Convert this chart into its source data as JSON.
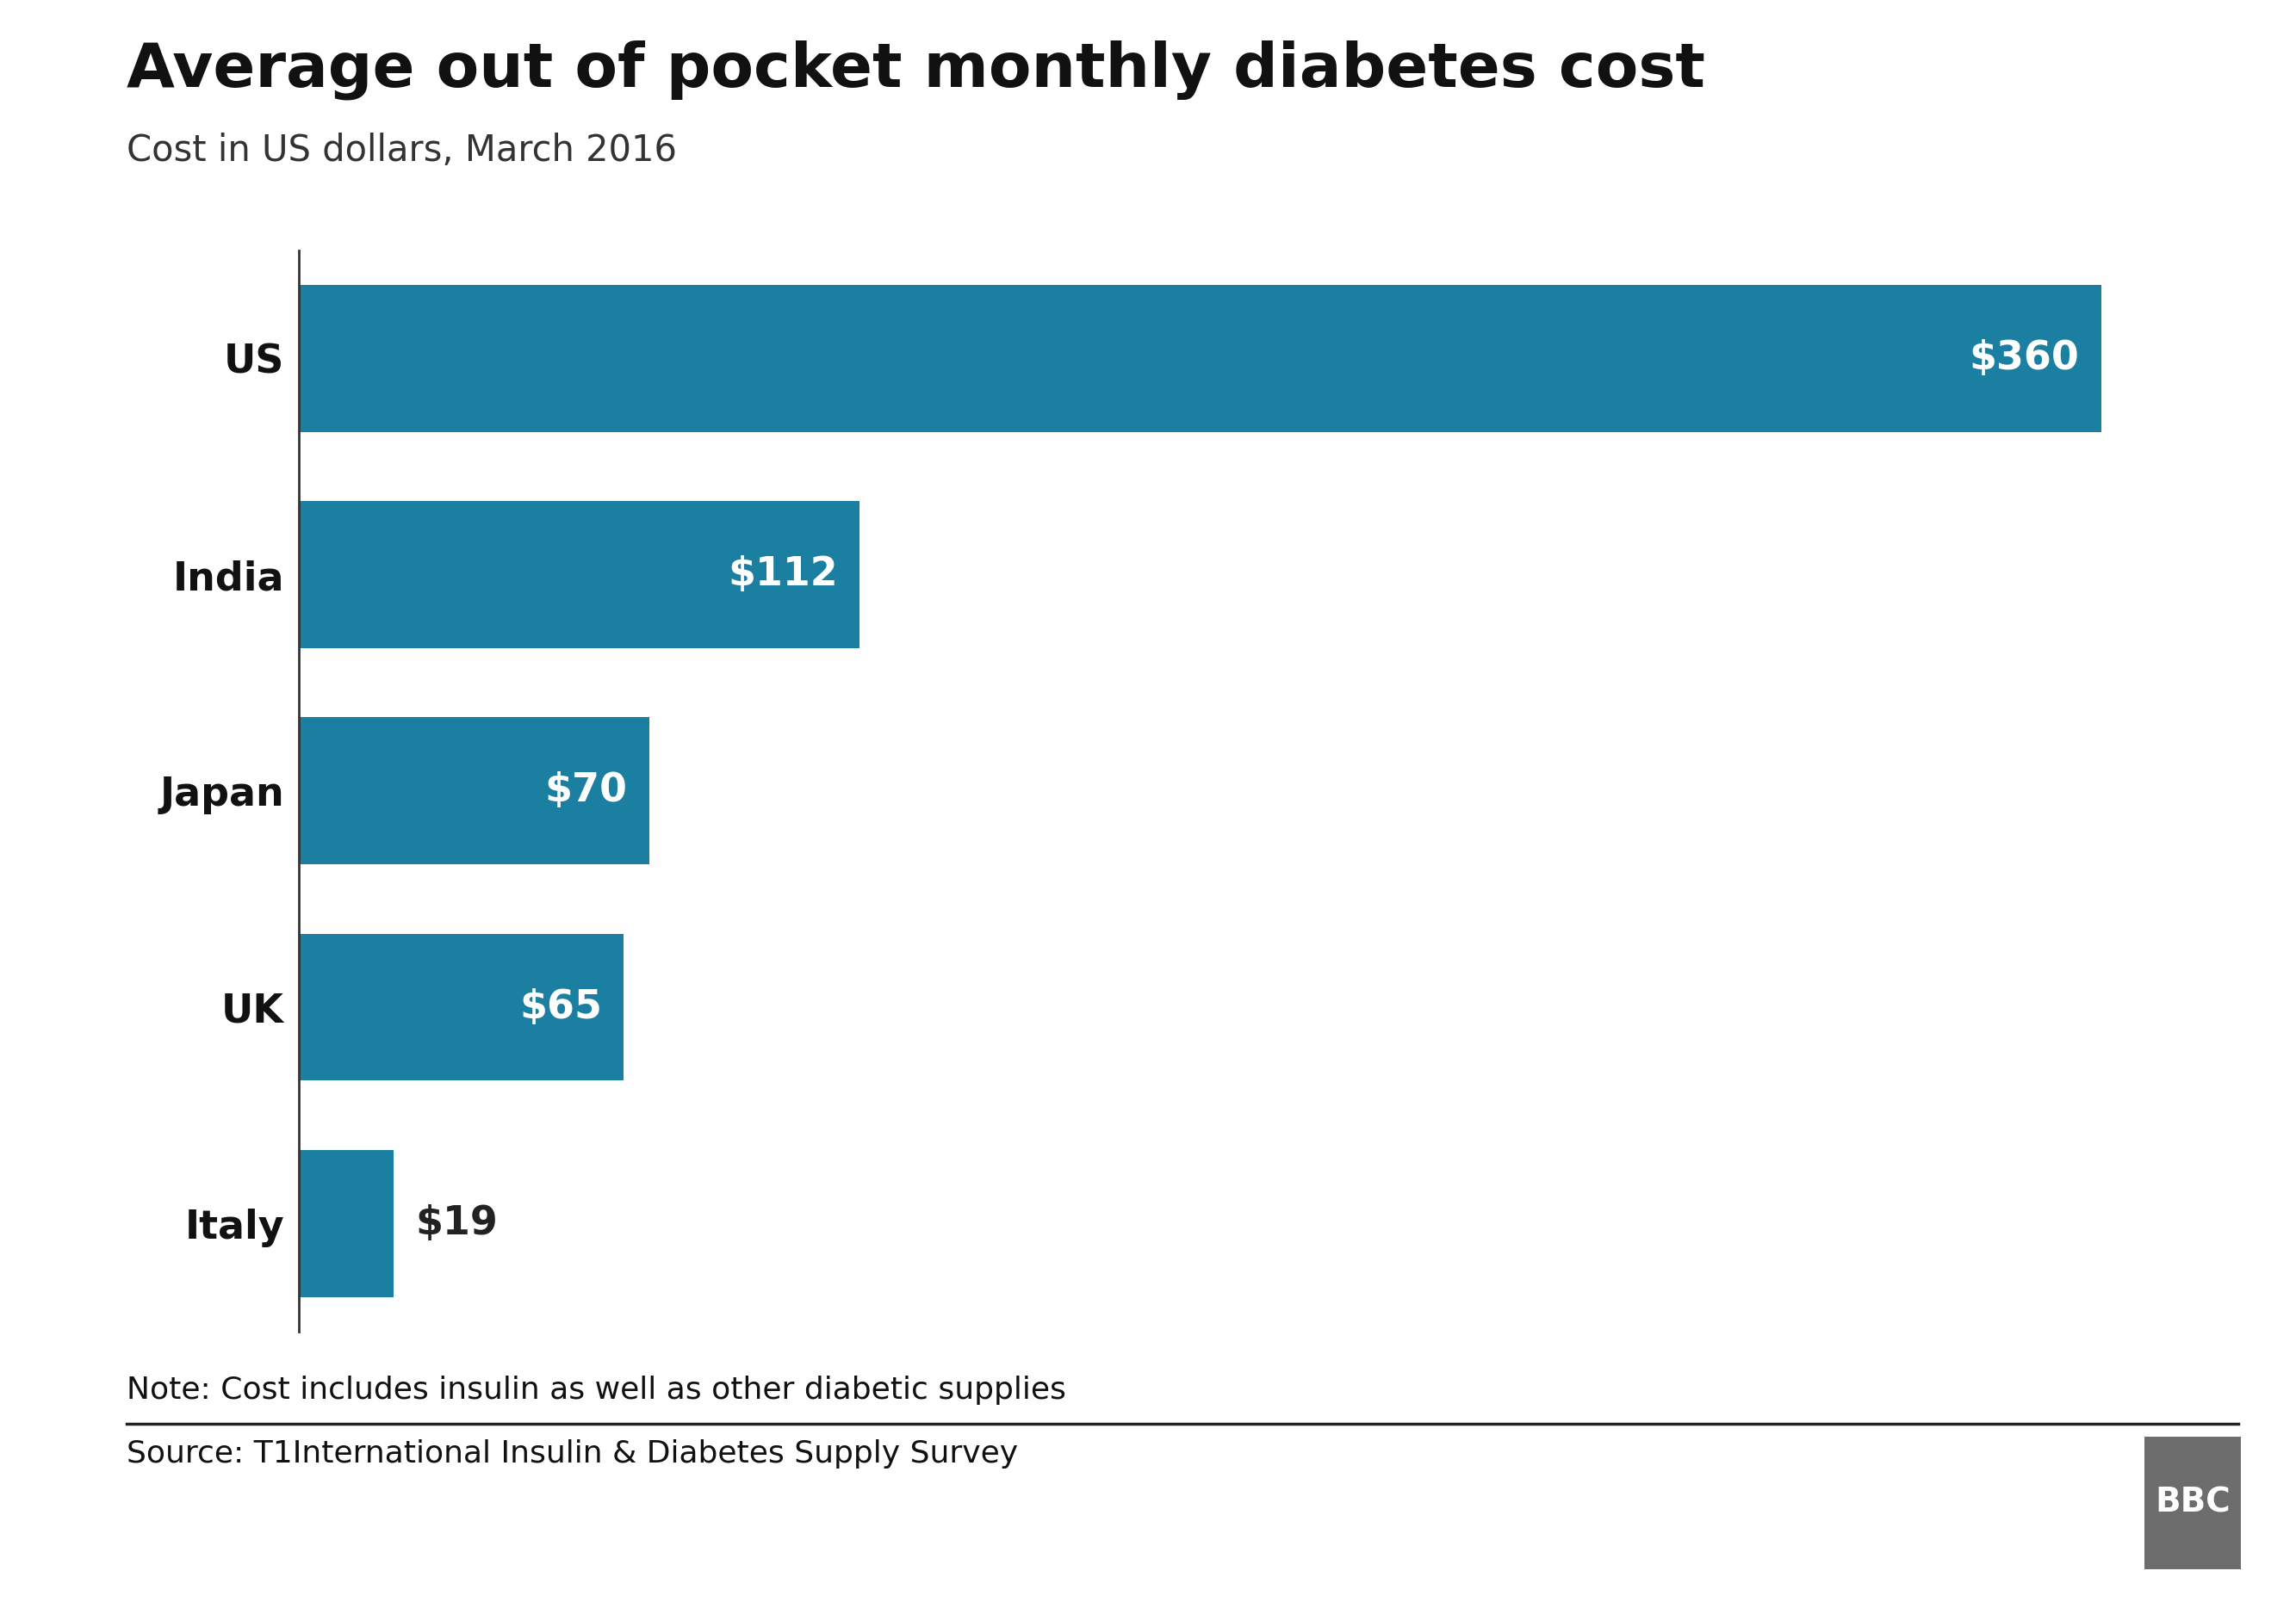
{
  "title": "Average out of pocket monthly diabetes cost",
  "subtitle": "Cost in US dollars, March 2016",
  "categories": [
    "US",
    "India",
    "Japan",
    "UK",
    "Italy"
  ],
  "values": [
    360,
    112,
    70,
    65,
    19
  ],
  "labels": [
    "$360",
    "$112",
    "$70",
    "$65",
    "$19"
  ],
  "bar_color": "#1a7fa0",
  "label_color_inside": "#ffffff",
  "label_color_outside": "#222222",
  "note": "Note: Cost includes insulin as well as other diabetic supplies",
  "source": "Source: T1International Insulin & Diabetes Supply Survey",
  "background_color": "#ffffff",
  "title_fontsize": 52,
  "subtitle_fontsize": 30,
  "label_fontsize": 33,
  "category_fontsize": 33,
  "note_fontsize": 26,
  "source_fontsize": 26,
  "bbc_fontsize": 28
}
